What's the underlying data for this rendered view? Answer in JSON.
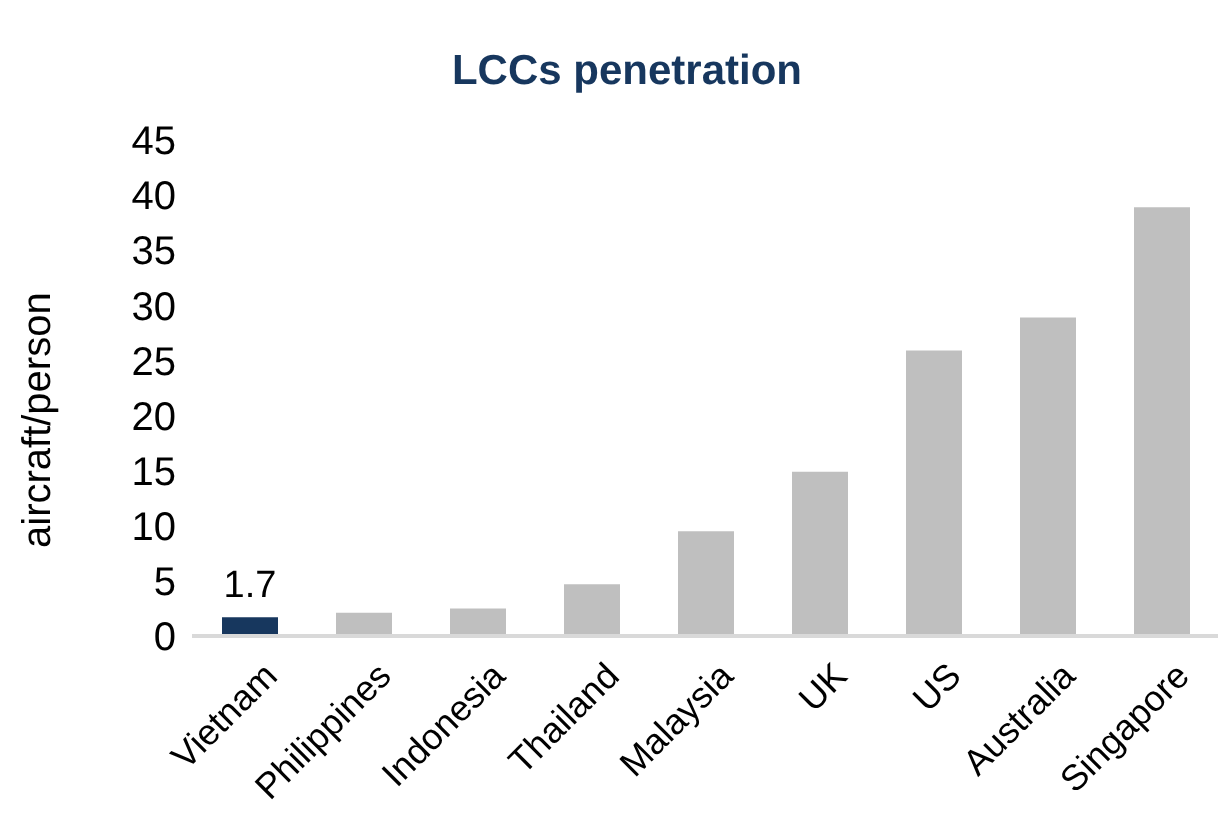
{
  "chart_data": {
    "type": "bar",
    "title": "LCCs penetration",
    "ylabel": "aircraft/person",
    "categories": [
      "Vietnam",
      "Philippines",
      "Indonesia",
      "Thailand",
      "Malaysia",
      "UK",
      "US",
      "Australia",
      "Singapore"
    ],
    "values": [
      1.7,
      2.1,
      2.5,
      4.7,
      9.5,
      14.9,
      25.9,
      28.9,
      38.9
    ],
    "colors": [
      "#17375e",
      "#bfbfbf",
      "#bfbfbf",
      "#bfbfbf",
      "#bfbfbf",
      "#bfbfbf",
      "#bfbfbf",
      "#bfbfbf",
      "#bfbfbf"
    ],
    "value_labels": [
      "1.7",
      null,
      null,
      null,
      null,
      null,
      null,
      null,
      null
    ],
    "ylim": [
      0,
      45
    ],
    "yticks": [
      0,
      5,
      10,
      15,
      20,
      25,
      30,
      35,
      40,
      45
    ],
    "grid": false,
    "legend": false
  }
}
